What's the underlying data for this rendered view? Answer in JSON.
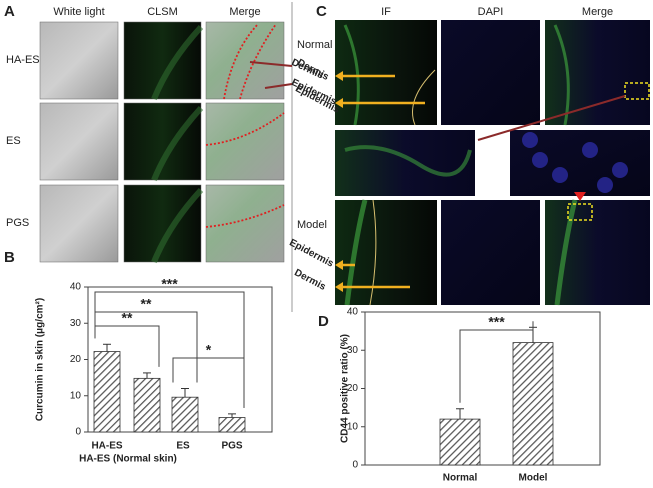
{
  "panel_labels": [
    "A",
    "B",
    "C",
    "D"
  ],
  "panel_a": {
    "columns": [
      "White light",
      "CLSM",
      "Merge"
    ],
    "rows": [
      "HA-ES",
      "ES",
      "PGS"
    ],
    "layers": [
      "Dermis",
      "Epidermis"
    ]
  },
  "panel_c": {
    "columns": [
      "IF",
      "DAPI",
      "Merge"
    ],
    "rows": [
      "Normal",
      "Model"
    ],
    "layers_normal": [
      "Dermis",
      "Epidermis"
    ],
    "layers_model": [
      "Epidermis",
      "Dermis"
    ]
  },
  "chart_data": [
    {
      "type": "bar",
      "ylabel": "Curcumin in skin (μg/cm²)",
      "categories": [
        "HA-ES",
        "HA-ES (Normal skin)",
        "ES",
        "PGS"
      ],
      "values": [
        22.2,
        14.8,
        9.6,
        4.0
      ],
      "errors": [
        2.0,
        1.5,
        2.4,
        1.0
      ],
      "color": "#555555",
      "ylim": [
        0,
        40
      ],
      "yticks": [
        0,
        10,
        20,
        30,
        40
      ],
      "annotations": [
        {
          "text": "***",
          "between": [
            0,
            3
          ]
        },
        {
          "text": "**",
          "between": [
            0,
            2
          ]
        },
        {
          "text": "**",
          "between": [
            0,
            1
          ]
        },
        {
          "text": "*",
          "between": [
            2,
            3
          ]
        }
      ]
    },
    {
      "type": "bar",
      "ylabel": "CD44 positive ratio (%)",
      "categories": [
        "Normal",
        "Model"
      ],
      "values": [
        12.0,
        32.0
      ],
      "errors": [
        2.7,
        4.0
      ],
      "color": "#555555",
      "ylim": [
        0,
        40
      ],
      "yticks": [
        0,
        10,
        20,
        30,
        40
      ],
      "annotations": [
        {
          "text": "***",
          "between": [
            0,
            1
          ]
        }
      ]
    }
  ]
}
